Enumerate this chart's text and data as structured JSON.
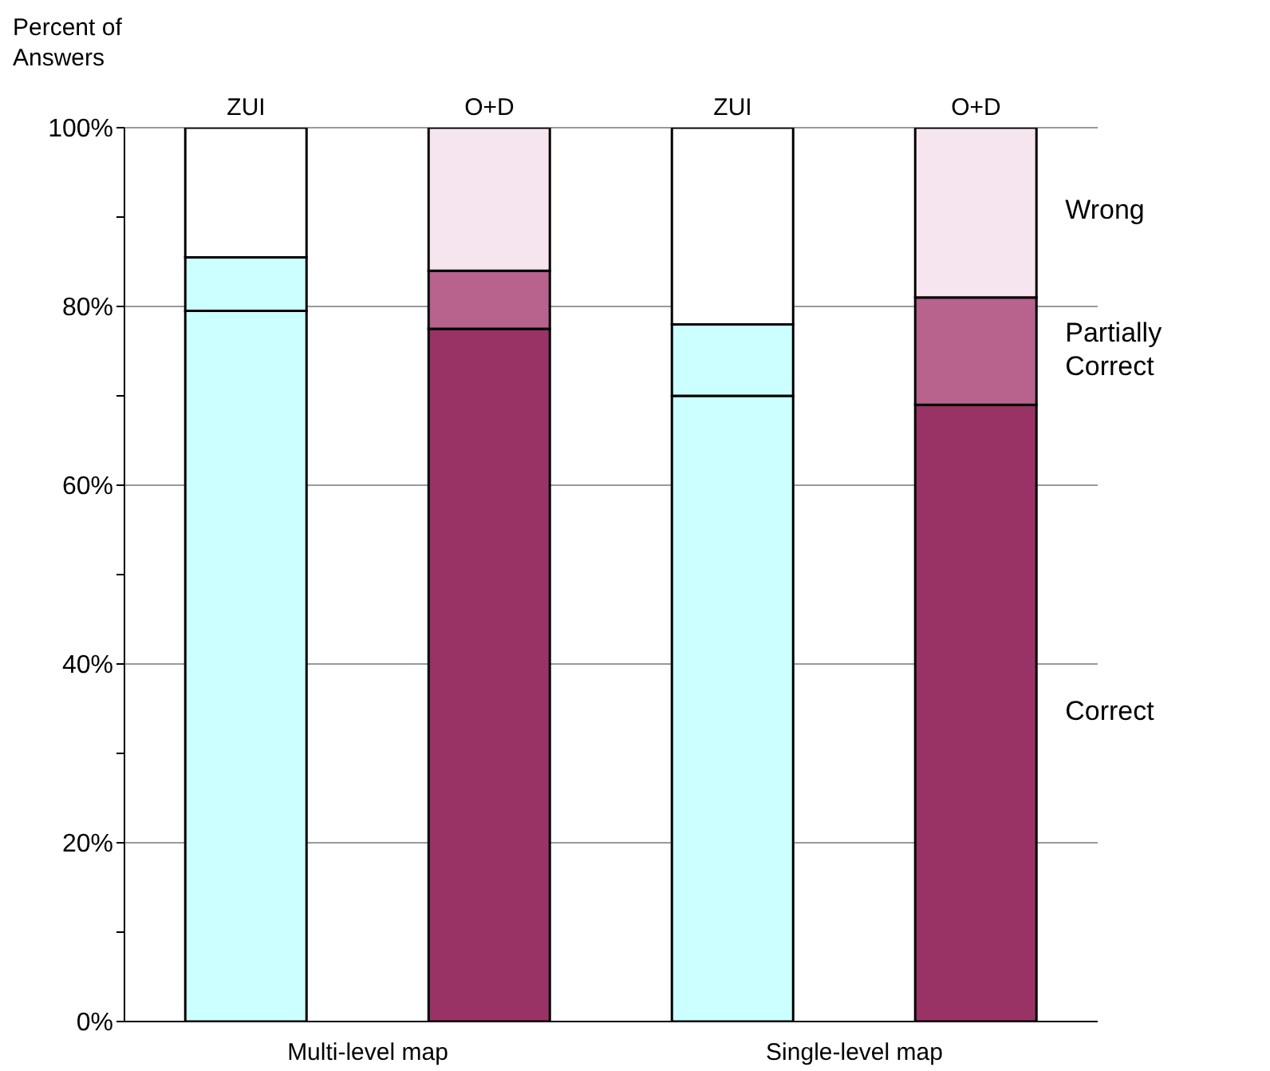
{
  "chart_data": {
    "type": "bar",
    "stacked": true,
    "ylabel": "Percent of Answers",
    "categories": [
      "ZUI",
      "O+D",
      "ZUI",
      "O+D"
    ],
    "series": [
      {
        "name": "Correct",
        "colors": [
          "#ccffff",
          "#993366",
          "#ccffff",
          "#993366"
        ],
        "values": [
          79.5,
          77.5,
          70,
          69
        ]
      },
      {
        "name": "Partially Correct",
        "colors": [
          "#ccffff",
          "#b8628e",
          "#ccffff",
          "#b8628e"
        ],
        "values": [
          6,
          6.5,
          8,
          12
        ]
      },
      {
        "name": "Wrong",
        "colors": [
          "#ffffff",
          "#f6e4ee",
          "#ffffff",
          "#f6e4ee"
        ],
        "values": [
          14.5,
          16,
          22,
          19
        ]
      }
    ],
    "ylim": [
      0,
      100
    ],
    "yticks": [
      {
        "value": 0,
        "label": "0%"
      },
      {
        "value": 10,
        "label": null
      },
      {
        "value": 20,
        "label": "20%"
      },
      {
        "value": 30,
        "label": null
      },
      {
        "value": 40,
        "label": "40%"
      },
      {
        "value": 50,
        "label": null
      },
      {
        "value": 60,
        "label": "60%"
      },
      {
        "value": 70,
        "label": null
      },
      {
        "value": 80,
        "label": "80%"
      },
      {
        "value": 90,
        "label": null
      },
      {
        "value": 100,
        "label": "100%"
      }
    ],
    "grid": "y",
    "annotations": [
      "Multi-level map",
      "Single-level map"
    ]
  }
}
